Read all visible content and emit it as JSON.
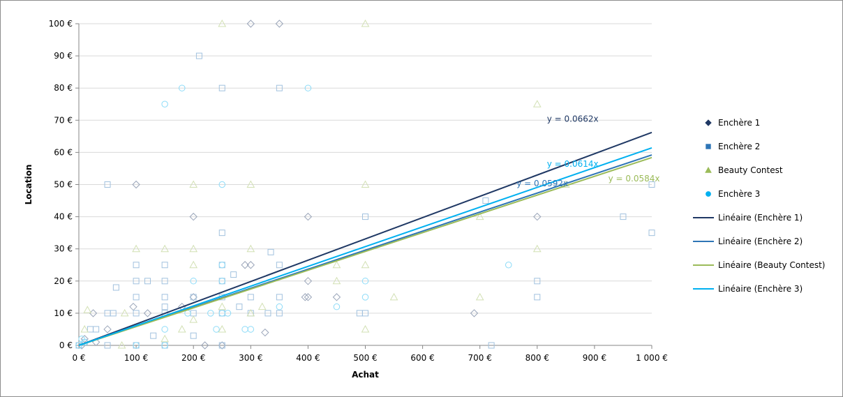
{
  "chart_data": {
    "type": "scatter",
    "xlabel": "Achat",
    "ylabel": "Location",
    "xlim": [
      0,
      1000
    ],
    "ylim": [
      0,
      100
    ],
    "x_ticks": [
      {
        "value": 0,
        "label": "0 €"
      },
      {
        "value": 100,
        "label": "100 €"
      },
      {
        "value": 200,
        "label": "200 €"
      },
      {
        "value": 300,
        "label": "300 €"
      },
      {
        "value": 400,
        "label": "400 €"
      },
      {
        "value": 500,
        "label": "500 €"
      },
      {
        "value": 600,
        "label": "600 €"
      },
      {
        "value": 700,
        "label": "700 €"
      },
      {
        "value": 800,
        "label": "800 €"
      },
      {
        "value": 900,
        "label": "900 €"
      },
      {
        "value": 1000,
        "label": "1 000 €"
      }
    ],
    "y_ticks": [
      {
        "value": 0,
        "label": "0 €"
      },
      {
        "value": 10,
        "label": "10 €"
      },
      {
        "value": 20,
        "label": "20 €"
      },
      {
        "value": 30,
        "label": "30 €"
      },
      {
        "value": 40,
        "label": "40 €"
      },
      {
        "value": 50,
        "label": "50 €"
      },
      {
        "value": 60,
        "label": "60 €"
      },
      {
        "value": 70,
        "label": "70 €"
      },
      {
        "value": 80,
        "label": "80 €"
      },
      {
        "value": 90,
        "label": "90 €"
      },
      {
        "value": 100,
        "label": "100 €"
      }
    ],
    "grid": {
      "horizontal": true,
      "vertical": false
    },
    "legend_position": "right",
    "series": [
      {
        "name": "Enchère 1",
        "marker": "diamond",
        "color": "#1f3864",
        "points": [
          [
            300,
            100
          ],
          [
            350,
            100
          ],
          [
            200,
            40
          ],
          [
            400,
            40
          ],
          [
            800,
            40
          ],
          [
            100,
            50
          ],
          [
            290,
            25
          ],
          [
            300,
            25
          ],
          [
            395,
            15
          ],
          [
            400,
            15
          ],
          [
            450,
            15
          ],
          [
            200,
            15
          ],
          [
            95,
            12
          ],
          [
            690,
            10
          ],
          [
            220,
            0
          ],
          [
            325,
            4
          ],
          [
            50,
            5
          ],
          [
            25,
            10
          ],
          [
            10,
            2
          ],
          [
            5,
            0
          ],
          [
            30,
            1
          ],
          [
            400,
            20
          ],
          [
            120,
            10
          ],
          [
            250,
            0
          ],
          [
            180,
            12
          ]
        ]
      },
      {
        "name": "Enchère 2",
        "marker": "square",
        "color": "#2e75b6",
        "points": [
          [
            210,
            90
          ],
          [
            250,
            80
          ],
          [
            350,
            80
          ],
          [
            50,
            50
          ],
          [
            250,
            35
          ],
          [
            335,
            29
          ],
          [
            500,
            40
          ],
          [
            710,
            45
          ],
          [
            950,
            40
          ],
          [
            1000,
            50
          ],
          [
            1000,
            35
          ],
          [
            800,
            20
          ],
          [
            800,
            15
          ],
          [
            100,
            25
          ],
          [
            150,
            25
          ],
          [
            250,
            25
          ],
          [
            350,
            25
          ],
          [
            100,
            20
          ],
          [
            120,
            20
          ],
          [
            150,
            20
          ],
          [
            250,
            20
          ],
          [
            270,
            22
          ],
          [
            100,
            15
          ],
          [
            150,
            15
          ],
          [
            200,
            15
          ],
          [
            250,
            15
          ],
          [
            300,
            15
          ],
          [
            350,
            15
          ],
          [
            65,
            18
          ],
          [
            50,
            10
          ],
          [
            60,
            10
          ],
          [
            100,
            10
          ],
          [
            150,
            10
          ],
          [
            200,
            10
          ],
          [
            250,
            10
          ],
          [
            300,
            10
          ],
          [
            350,
            10
          ],
          [
            490,
            10
          ],
          [
            500,
            10
          ],
          [
            130,
            3
          ],
          [
            200,
            3
          ],
          [
            250,
            0
          ],
          [
            720,
            0
          ],
          [
            20,
            5
          ],
          [
            30,
            5
          ],
          [
            50,
            0
          ],
          [
            100,
            0
          ],
          [
            150,
            12
          ],
          [
            330,
            10
          ],
          [
            280,
            12
          ],
          [
            150,
            0
          ],
          [
            10,
            1
          ],
          [
            0,
            0
          ]
        ]
      },
      {
        "name": "Beauty Contest",
        "marker": "triangle",
        "color": "#9bbb59",
        "points": [
          [
            250,
            100
          ],
          [
            500,
            100
          ],
          [
            800,
            75
          ],
          [
            200,
            50
          ],
          [
            300,
            50
          ],
          [
            500,
            50
          ],
          [
            100,
            30
          ],
          [
            150,
            30
          ],
          [
            200,
            30
          ],
          [
            300,
            30
          ],
          [
            800,
            30
          ],
          [
            200,
            25
          ],
          [
            450,
            25
          ],
          [
            500,
            25
          ],
          [
            450,
            20
          ],
          [
            550,
            15
          ],
          [
            700,
            15
          ],
          [
            700,
            40
          ],
          [
            850,
            50
          ],
          [
            15,
            11
          ],
          [
            250,
            12
          ],
          [
            320,
            12
          ],
          [
            500,
            5
          ],
          [
            250,
            5
          ],
          [
            150,
            2
          ],
          [
            75,
            0
          ],
          [
            10,
            5
          ],
          [
            80,
            10
          ],
          [
            200,
            8
          ],
          [
            300,
            10
          ],
          [
            180,
            5
          ]
        ]
      },
      {
        "name": "Enchère 3",
        "marker": "circle",
        "color": "#00b0f0",
        "points": [
          [
            150,
            75
          ],
          [
            180,
            80
          ],
          [
            400,
            80
          ],
          [
            250,
            50
          ],
          [
            250,
            25
          ],
          [
            750,
            25
          ],
          [
            200,
            20
          ],
          [
            250,
            20
          ],
          [
            500,
            20
          ],
          [
            450,
            12
          ],
          [
            500,
            15
          ],
          [
            230,
            10
          ],
          [
            250,
            10
          ],
          [
            260,
            10
          ],
          [
            290,
            5
          ],
          [
            300,
            5
          ],
          [
            240,
            5
          ],
          [
            150,
            5
          ],
          [
            150,
            0
          ],
          [
            100,
            0
          ],
          [
            0,
            0
          ],
          [
            5,
            2
          ],
          [
            10,
            1
          ],
          [
            190,
            10
          ],
          [
            350,
            12
          ]
        ]
      }
    ],
    "trendlines": [
      {
        "name": "Linéaire (Enchère 1)",
        "slope": 0.0662,
        "equation": "y = 0.0662x",
        "color": "#1f3864"
      },
      {
        "name": "Linéaire (Enchère 2)",
        "slope": 0.0592,
        "equation": "y = 0.0592x",
        "color": "#2e75b6"
      },
      {
        "name": "Linéaire (Beauty Contest)",
        "slope": 0.0584,
        "equation": "y = 0.0584x",
        "color": "#9bbb59"
      },
      {
        "name": "Linéaire (Enchère 3)",
        "slope": 0.0614,
        "equation": "y = 0.0614x",
        "color": "#00b0f0"
      }
    ]
  }
}
